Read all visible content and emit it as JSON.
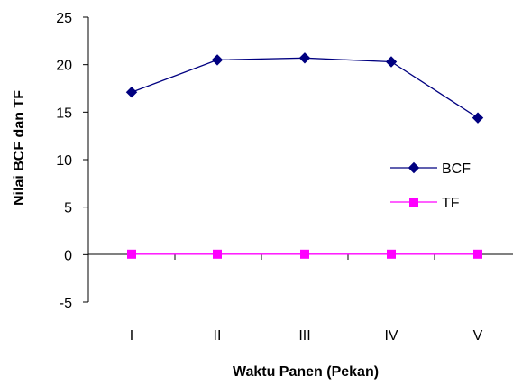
{
  "chart_data": {
    "type": "line",
    "categories": [
      "I",
      "II",
      "III",
      "IV",
      "V"
    ],
    "series": [
      {
        "name": "BCF",
        "values": [
          17.1,
          20.5,
          20.7,
          20.3,
          14.4
        ],
        "color": "#000080",
        "marker": "diamond"
      },
      {
        "name": "TF",
        "values": [
          0.05,
          0.05,
          0.05,
          0.05,
          0.05
        ],
        "color": "#FF00FF",
        "marker": "square"
      }
    ],
    "title": "",
    "xlabel": "Waktu Panen (Pekan)",
    "ylabel": "Nilai BCF dan TF",
    "ylim": [
      -5,
      25
    ],
    "yticks": [
      -5,
      0,
      5,
      10,
      15,
      20,
      25
    ],
    "grid": false,
    "legend_position": "right"
  }
}
